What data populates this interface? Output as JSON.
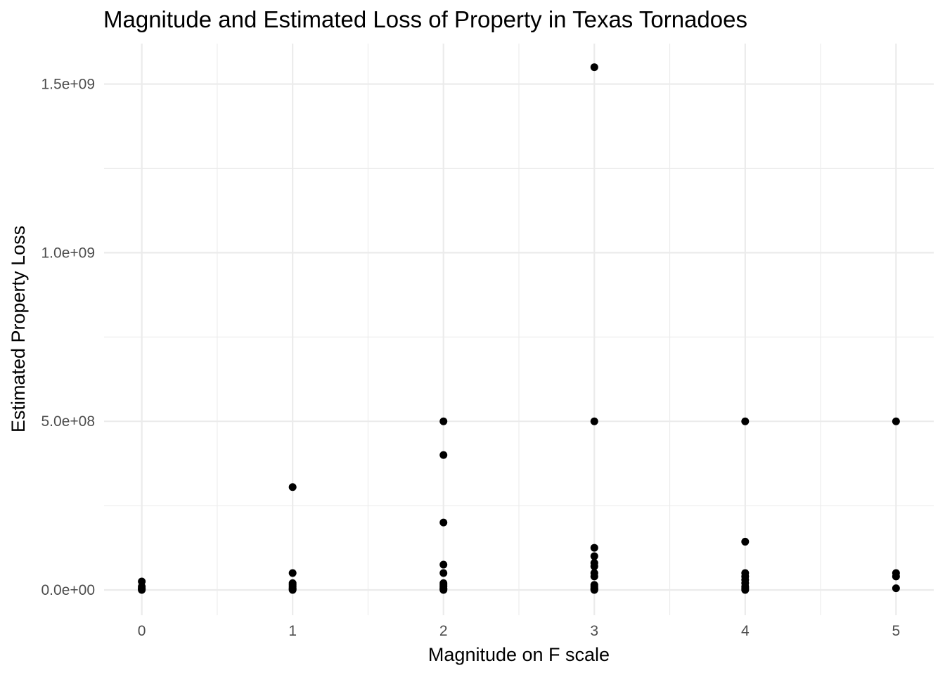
{
  "chart_data": {
    "type": "scatter",
    "title": "Magnitude and Estimated Loss of Property in Texas Tornadoes",
    "xlabel": "Magnitude on F scale",
    "ylabel": "Estimated Property Loss",
    "xlim": [
      -0.25,
      5.25
    ],
    "ylim": [
      -75000000,
      1620000000
    ],
    "x_ticks": [
      0,
      1,
      2,
      3,
      4,
      5
    ],
    "x_tick_labels": [
      "0",
      "1",
      "2",
      "3",
      "4",
      "5"
    ],
    "y_ticks": [
      0,
      500000000,
      1000000000,
      1500000000
    ],
    "y_tick_labels": [
      "0.0e+00",
      "5.0e+08",
      "1.0e+09",
      "1.5e+09"
    ],
    "grid": true,
    "point_color": "#000000",
    "points": [
      {
        "x": 0,
        "y": 0
      },
      {
        "x": 0,
        "y": 2500000
      },
      {
        "x": 0,
        "y": 5000000
      },
      {
        "x": 0,
        "y": 10000000
      },
      {
        "x": 0,
        "y": 25000000
      },
      {
        "x": 1,
        "y": 0
      },
      {
        "x": 1,
        "y": 2500000
      },
      {
        "x": 1,
        "y": 5000000
      },
      {
        "x": 1,
        "y": 10000000
      },
      {
        "x": 1,
        "y": 15000000
      },
      {
        "x": 1,
        "y": 20000000
      },
      {
        "x": 1,
        "y": 50000000
      },
      {
        "x": 1,
        "y": 305000000
      },
      {
        "x": 2,
        "y": 0
      },
      {
        "x": 2,
        "y": 2500000
      },
      {
        "x": 2,
        "y": 5000000
      },
      {
        "x": 2,
        "y": 10000000
      },
      {
        "x": 2,
        "y": 15000000
      },
      {
        "x": 2,
        "y": 20000000
      },
      {
        "x": 2,
        "y": 50000000
      },
      {
        "x": 2,
        "y": 75000000
      },
      {
        "x": 2,
        "y": 200000000
      },
      {
        "x": 2,
        "y": 400000000
      },
      {
        "x": 2,
        "y": 500000000
      },
      {
        "x": 3,
        "y": 0
      },
      {
        "x": 3,
        "y": 2500000
      },
      {
        "x": 3,
        "y": 5000000
      },
      {
        "x": 3,
        "y": 10000000
      },
      {
        "x": 3,
        "y": 15000000
      },
      {
        "x": 3,
        "y": 40000000
      },
      {
        "x": 3,
        "y": 50000000
      },
      {
        "x": 3,
        "y": 70000000
      },
      {
        "x": 3,
        "y": 80000000
      },
      {
        "x": 3,
        "y": 100000000
      },
      {
        "x": 3,
        "y": 125000000
      },
      {
        "x": 3,
        "y": 500000000
      },
      {
        "x": 3,
        "y": 1550000000
      },
      {
        "x": 4,
        "y": 0
      },
      {
        "x": 4,
        "y": 5000000
      },
      {
        "x": 4,
        "y": 10000000
      },
      {
        "x": 4,
        "y": 20000000
      },
      {
        "x": 4,
        "y": 30000000
      },
      {
        "x": 4,
        "y": 40000000
      },
      {
        "x": 4,
        "y": 50000000
      },
      {
        "x": 4,
        "y": 143000000
      },
      {
        "x": 4,
        "y": 500000000
      },
      {
        "x": 5,
        "y": 5000000
      },
      {
        "x": 5,
        "y": 40000000
      },
      {
        "x": 5,
        "y": 50000000
      },
      {
        "x": 5,
        "y": 500000000
      }
    ]
  }
}
